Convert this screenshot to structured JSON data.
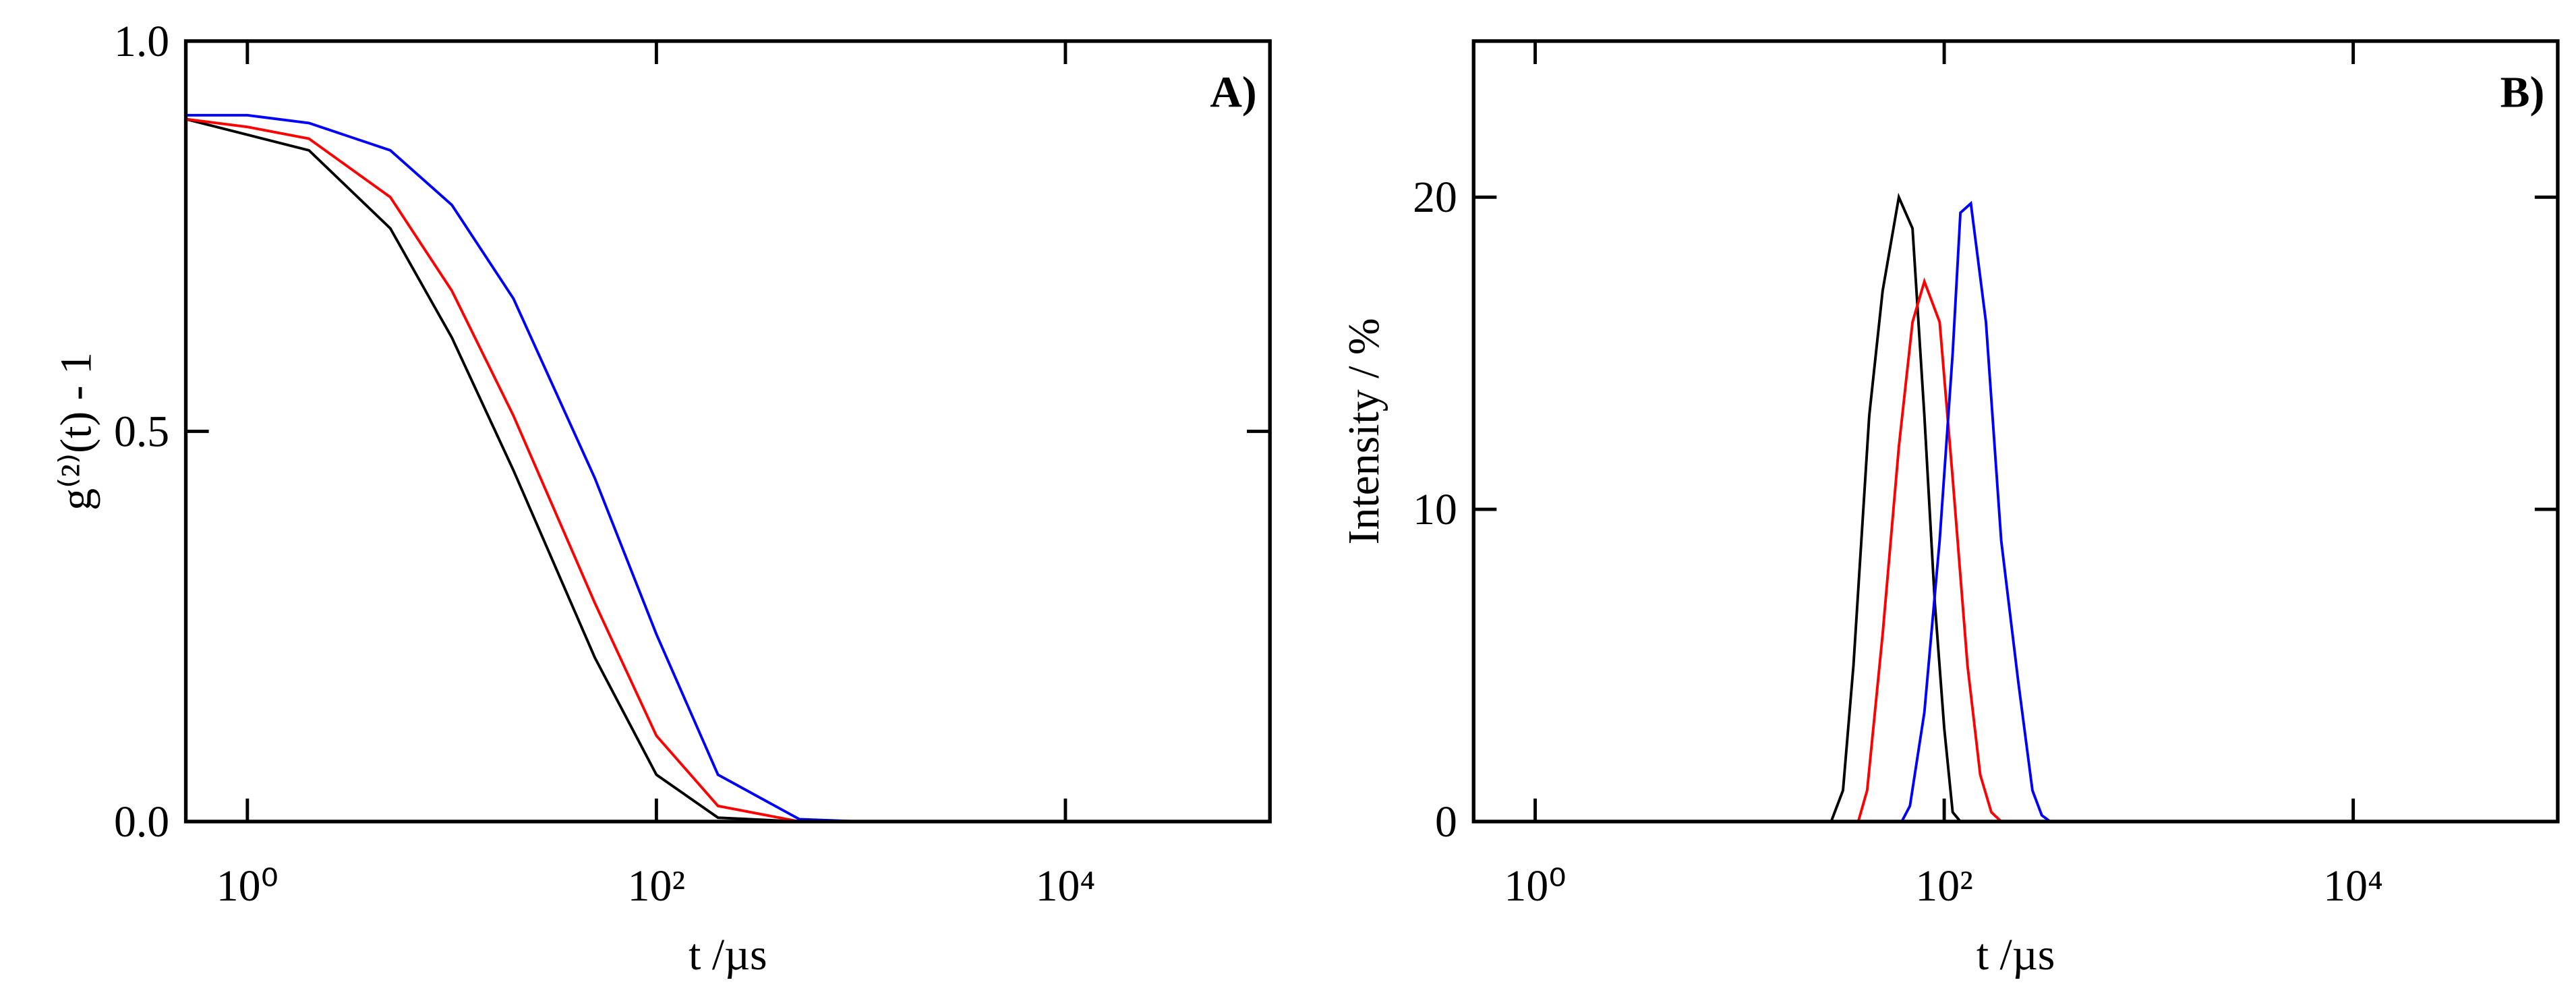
{
  "chart_data": [
    {
      "type": "line",
      "annotation": "A)",
      "xlabel": "t /µs",
      "ylabel": "g⁽²⁾(t) - 1",
      "xscale": "log",
      "xlim": [
        0.5,
        100000
      ],
      "xticks": [
        {
          "value": 1,
          "label": "10⁰"
        },
        {
          "value": 100,
          "label": "10²"
        },
        {
          "value": 10000,
          "label": "10⁴"
        }
      ],
      "ylim": [
        0,
        1
      ],
      "yticks": [
        {
          "value": 0,
          "label": "0.0"
        },
        {
          "value": 0.5,
          "label": "0.5"
        },
        {
          "value": 1,
          "label": "1.0"
        }
      ],
      "series": [
        {
          "color": "#000000",
          "x": [
            0.5,
            1,
            2,
            5,
            10,
            20,
            50,
            100,
            200,
            500,
            1000,
            10000,
            100000
          ],
          "values": [
            0.9,
            0.88,
            0.86,
            0.76,
            0.62,
            0.45,
            0.21,
            0.06,
            0.005,
            0,
            0,
            0,
            0
          ]
        },
        {
          "color": "#ff0000",
          "x": [
            0.5,
            1,
            2,
            5,
            10,
            20,
            50,
            100,
            200,
            500,
            1000,
            10000,
            100000
          ],
          "values": [
            0.9,
            0.89,
            0.875,
            0.8,
            0.68,
            0.52,
            0.28,
            0.11,
            0.02,
            0,
            0,
            0,
            0
          ]
        },
        {
          "color": "#0000ff",
          "x": [
            0.5,
            1,
            2,
            5,
            10,
            20,
            50,
            100,
            200,
            500,
            1000,
            10000,
            100000
          ],
          "values": [
            0.905,
            0.905,
            0.895,
            0.86,
            0.79,
            0.67,
            0.44,
            0.24,
            0.06,
            0.003,
            0,
            0,
            0
          ]
        }
      ]
    },
    {
      "type": "line",
      "annotation": "B)",
      "xlabel": "t /µs",
      "ylabel": "Intensity / %",
      "xscale": "log",
      "xlim": [
        0.5,
        100000
      ],
      "xticks": [
        {
          "value": 1,
          "label": "10⁰"
        },
        {
          "value": 100,
          "label": "10²"
        },
        {
          "value": 10000,
          "label": "10⁴"
        }
      ],
      "ylim": [
        0,
        25
      ],
      "yticks": [
        0,
        10,
        20
      ],
      "series": [
        {
          "color": "#000000",
          "x": [
            0.5,
            28,
            32,
            36,
            43,
            50,
            60,
            70,
            80,
            90,
            100,
            110,
            120,
            100000
          ],
          "values": [
            0,
            0,
            1,
            5,
            13,
            17,
            20,
            19,
            13,
            7,
            3,
            0.3,
            0,
            0
          ]
        },
        {
          "color": "#ff0000",
          "x": [
            0.5,
            38,
            42,
            50,
            60,
            70,
            80,
            95,
            110,
            130,
            150,
            170,
            190,
            100000
          ],
          "values": [
            0,
            0,
            1,
            6,
            12,
            16,
            17.3,
            16,
            11,
            5,
            1.5,
            0.3,
            0,
            0
          ]
        },
        {
          "color": "#0000ff",
          "x": [
            0.5,
            62,
            68,
            80,
            95,
            110,
            120,
            135,
            160,
            190,
            230,
            270,
            300,
            330,
            100000
          ],
          "values": [
            0,
            0,
            0.5,
            3.5,
            9,
            15,
            19.5,
            19.8,
            16,
            9,
            4.5,
            1,
            0.2,
            0,
            0
          ]
        }
      ]
    }
  ]
}
